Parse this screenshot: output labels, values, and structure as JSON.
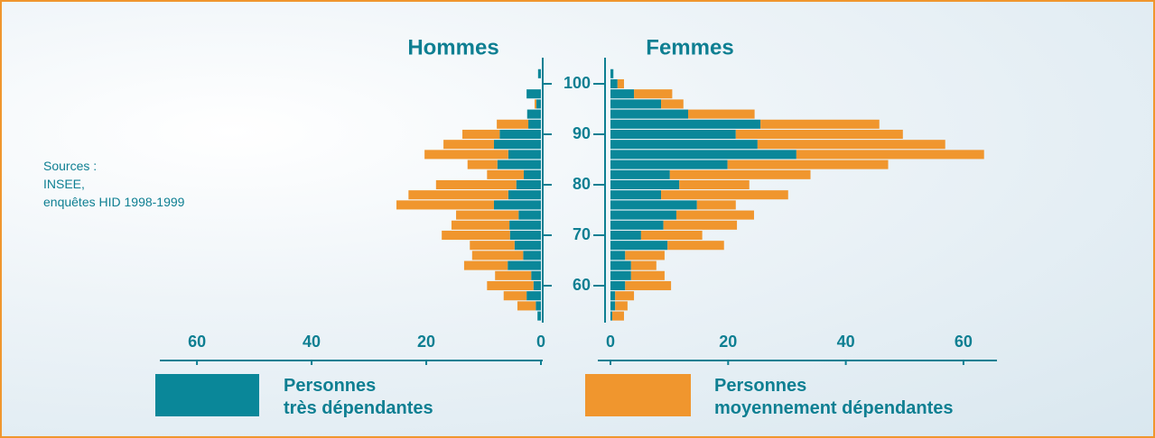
{
  "chart_data": {
    "type": "pyramid",
    "groups": [
      "Hommes",
      "Femmes"
    ],
    "x": [
      54,
      56,
      58,
      60,
      62,
      64,
      66,
      68,
      70,
      72,
      74,
      76,
      78,
      80,
      82,
      84,
      86,
      88,
      90,
      92,
      94,
      96,
      98,
      100,
      102
    ],
    "xlim": [
      53,
      103
    ],
    "xticks": [
      60,
      70,
      80,
      90,
      100
    ],
    "ylim": [
      0,
      66
    ],
    "yticks": [
      0,
      20,
      40,
      60
    ],
    "series": [
      {
        "name": "Personnes\ntrès dépendantes",
        "color": "#0a8799",
        "values": [
          [
            0.6,
            0.9,
            2.5,
            1.3,
            1.7,
            5.8,
            3.1,
            4.6,
            5.4,
            5.5,
            3.9,
            8.2,
            5.7,
            4.3,
            3,
            7.6,
            5.7,
            8.2,
            7.2,
            2.2,
            2.4,
            0.8,
            2.5,
            0,
            0.5
          ],
          [
            0.3,
            0.8,
            0.8,
            2.5,
            3.5,
            3.5,
            2.5,
            9.7,
            5.2,
            9,
            11.2,
            14.7,
            8.6,
            11.7,
            10.1,
            19.9,
            31.6,
            25,
            21.3,
            25.5,
            13.2,
            8.6,
            4,
            1.2,
            0.5
          ]
        ]
      },
      {
        "name": "Personnes\nmoyennement dépendantes",
        "color": "#f0962e",
        "values": [
          [
            0,
            3.2,
            4,
            8.1,
            6.3,
            7.6,
            8.9,
            7.8,
            11.9,
            10.1,
            10.9,
            17,
            17.4,
            14,
            6.4,
            5.2,
            14.6,
            8.8,
            6.5,
            5.5,
            0,
            0.3,
            0,
            0,
            0
          ],
          [
            2,
            2.1,
            3.2,
            7.8,
            5.7,
            4.3,
            6.7,
            9.6,
            10.4,
            12.5,
            13.2,
            6.6,
            21.6,
            11.9,
            23.9,
            27.3,
            31.9,
            31.9,
            28.4,
            20.2,
            11.3,
            3.8,
            6.5,
            1.1,
            0
          ]
        ]
      }
    ],
    "annotation": "Sources :\nINSEE,\nenquêtes HID 1998-1999"
  }
}
